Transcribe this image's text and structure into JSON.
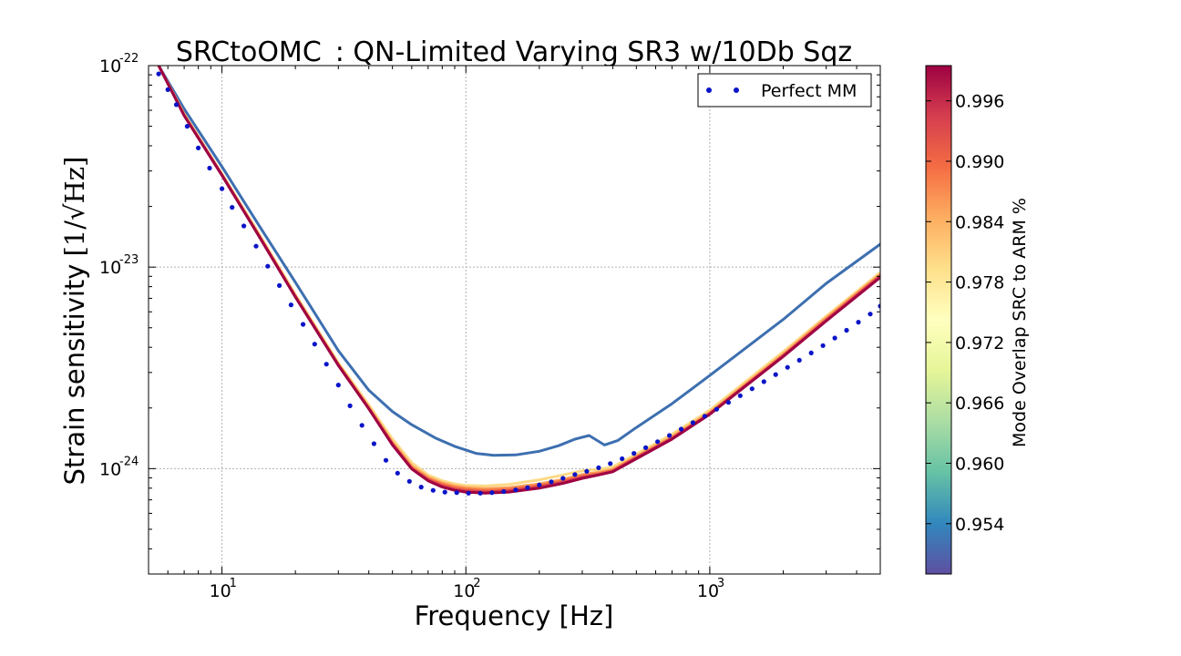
{
  "chart_data": {
    "type": "line",
    "title": "SRCtoOMC_: QN-Limited Varying SR3 w/10Db Sqz",
    "xlabel": "Frequency [Hz]",
    "ylabel_prefix": "Strain sensitivity",
    "ylabel_unit": "[1/√Hz]",
    "x_scale": "log",
    "y_scale": "log",
    "xlim": [
      5,
      5000
    ],
    "ylim": [
      3e-25,
      1e-22
    ],
    "grid": true,
    "x_ticks": [
      {
        "base": "10",
        "exp": "1"
      },
      {
        "base": "10",
        "exp": "2"
      },
      {
        "base": "10",
        "exp": "3"
      }
    ],
    "y_ticks": [
      {
        "base": "10",
        "exp": "-24"
      },
      {
        "base": "10",
        "exp": "-23"
      },
      {
        "base": "10",
        "exp": "-22"
      }
    ],
    "legend": {
      "position": "top-right",
      "entries": [
        "Perfect MM"
      ]
    },
    "colorbar": {
      "label": "Mode Overlap SRC to ARM %",
      "min": 0.949,
      "max": 0.9995,
      "ticks": [
        "0.954",
        "0.960",
        "0.966",
        "0.972",
        "0.978",
        "0.984",
        "0.990",
        "0.996"
      ],
      "colormap": "Spectral"
    },
    "series": [
      {
        "overlap": 0.951,
        "color": "#3d6fb0",
        "x": [
          5.5,
          7,
          10,
          14,
          20,
          30,
          40,
          50,
          60,
          75,
          90,
          110,
          130,
          160,
          200,
          240,
          280,
          320,
          370,
          420,
          500,
          700,
          1000,
          2000,
          3000,
          5000
        ],
        "y": [
          1e-22,
          6.1e-23,
          3.15e-23,
          1.65e-23,
          8.4e-24,
          3.85e-24,
          2.45e-24,
          1.92e-24,
          1.65e-24,
          1.42e-24,
          1.29e-24,
          1.19e-24,
          1.165e-24,
          1.17e-24,
          1.22e-24,
          1.3e-24,
          1.4e-24,
          1.46e-24,
          1.31e-24,
          1.38e-24,
          1.6e-24,
          2.1e-24,
          2.9e-24,
          5.5e-24,
          8.3e-24,
          1.3e-23
        ]
      },
      {
        "overlap": 0.981,
        "color": "#fdd985",
        "x": [
          5.5,
          7,
          10,
          14,
          20,
          30,
          40,
          50,
          60,
          70,
          80,
          90,
          100,
          120,
          150,
          200,
          250,
          300,
          350,
          400,
          500,
          700,
          1000,
          2000,
          3000,
          5000
        ],
        "y": [
          1e-22,
          5.75e-23,
          2.9e-23,
          1.5e-23,
          7.3e-24,
          3.35e-24,
          2.07e-24,
          1.4e-24,
          1.07e-24,
          9.3e-25,
          8.7e-25,
          8.4e-25,
          8.25e-25,
          8.2e-25,
          8.35e-25,
          8.8e-25,
          9.3e-25,
          9.75e-25,
          9.9e-25,
          1.02e-24,
          1.18e-24,
          1.48e-24,
          1.95e-24,
          3.8e-24,
          5.7e-24,
          9.4e-24
        ]
      },
      {
        "overlap": 0.988,
        "color": "#fba05b",
        "x": [
          5.5,
          7,
          10,
          14,
          20,
          30,
          40,
          50,
          60,
          70,
          80,
          90,
          100,
          120,
          150,
          200,
          250,
          300,
          350,
          400,
          500,
          700,
          1000,
          2000,
          3000,
          5000
        ],
        "y": [
          1e-22,
          5.7e-23,
          2.88e-23,
          1.48e-23,
          7.2e-24,
          3.3e-24,
          2.02e-24,
          1.35e-24,
          1.03e-24,
          9.05e-25,
          8.5e-25,
          8.2e-25,
          8.05e-25,
          7.95e-25,
          8.05e-25,
          8.4e-25,
          8.85e-25,
          9.35e-25,
          9.6e-25,
          9.9e-25,
          1.15e-24,
          1.44e-24,
          1.9e-24,
          3.7e-24,
          5.6e-24,
          9.2e-24
        ]
      },
      {
        "overlap": 0.993,
        "color": "#f46d43",
        "x": [
          5.5,
          7,
          10,
          14,
          20,
          30,
          40,
          50,
          60,
          70,
          80,
          90,
          100,
          120,
          150,
          200,
          250,
          300,
          350,
          400,
          500,
          700,
          1000,
          2000,
          3000,
          5000
        ],
        "y": [
          1e-22,
          5.68e-23,
          2.87e-23,
          1.47e-23,
          7.15e-24,
          3.28e-24,
          2e-24,
          1.33e-24,
          1.01e-24,
          8.9e-25,
          8.35e-25,
          8.05e-25,
          7.9e-25,
          7.8e-25,
          7.9e-25,
          8.25e-25,
          8.7e-25,
          9.2e-25,
          9.45e-25,
          9.8e-25,
          1.14e-24,
          1.42e-24,
          1.88e-24,
          3.65e-24,
          5.5e-24,
          9.1e-24
        ]
      },
      {
        "overlap": 0.997,
        "color": "#d53e4f",
        "x": [
          5.5,
          7,
          10,
          14,
          20,
          30,
          40,
          50,
          60,
          70,
          80,
          90,
          100,
          120,
          150,
          200,
          250,
          300,
          350,
          400,
          500,
          700,
          1000,
          2000,
          3000,
          5000
        ],
        "y": [
          1e-22,
          5.66e-23,
          2.86e-23,
          1.465e-23,
          7.12e-24,
          3.26e-24,
          1.99e-24,
          1.32e-24,
          1e-24,
          8.8e-25,
          8.2e-25,
          7.9e-25,
          7.75e-25,
          7.65e-25,
          7.75e-25,
          8.1e-25,
          8.55e-25,
          9.05e-25,
          9.35e-25,
          9.7e-25,
          1.13e-24,
          1.41e-24,
          1.87e-24,
          3.62e-24,
          5.45e-24,
          9e-24
        ]
      },
      {
        "overlap": 0.9995,
        "color": "#9e0142",
        "x": [
          5.5,
          7,
          10,
          14,
          20,
          30,
          40,
          50,
          60,
          70,
          80,
          90,
          100,
          120,
          150,
          200,
          250,
          300,
          350,
          400,
          500,
          700,
          1000,
          2000,
          3000,
          5000
        ],
        "y": [
          1e-22,
          5.64e-23,
          2.85e-23,
          1.46e-23,
          7.1e-24,
          3.25e-24,
          1.98e-24,
          1.31e-24,
          9.95e-25,
          8.7e-25,
          8.1e-25,
          7.8e-25,
          7.65e-25,
          7.55e-25,
          7.65e-25,
          8e-25,
          8.45e-25,
          8.95e-25,
          9.3e-25,
          9.65e-25,
          1.12e-24,
          1.4e-24,
          1.86e-24,
          3.6e-24,
          5.4e-24,
          8.9e-24
        ]
      }
    ],
    "markers": {
      "label": "Perfect MM",
      "color": "#0a14c8",
      "x": [
        5.5,
        6,
        6.5,
        7.2,
        8,
        8.9,
        10,
        11,
        12.3,
        13.8,
        15.4,
        17.2,
        19.2,
        21.5,
        24,
        26.8,
        30,
        33.5,
        37.5,
        42,
        47,
        52.5,
        58.7,
        65.6,
        73.4,
        82,
        91.7,
        102.5,
        114.6,
        128,
        143,
        160,
        179,
        200,
        224,
        250,
        280,
        313,
        350,
        391,
        437,
        489,
        546,
        611,
        683,
        763,
        853,
        954,
        1067,
        1193,
        1333,
        1491,
        1667,
        1863,
        2083,
        2329,
        2604,
        2911,
        3254,
        3638,
        4067,
        4547,
        5000
      ],
      "y": [
        9.1e-23,
        7.6e-23,
        6.4e-23,
        5e-23,
        3.9e-23,
        3.1e-23,
        2.45e-23,
        1.98e-23,
        1.6e-23,
        1.27e-23,
        1.01e-23,
        8.1e-24,
        6.5e-24,
        5.2e-24,
        4.15e-24,
        3.3e-24,
        2.6e-24,
        2.05e-24,
        1.64e-24,
        1.33e-24,
        1.1e-24,
        9.5e-25,
        8.65e-25,
        8.1e-25,
        7.8e-25,
        7.65e-25,
        7.6e-25,
        7.55e-25,
        7.55e-25,
        7.6e-25,
        7.7e-25,
        7.85e-25,
        8.05e-25,
        8.3e-25,
        8.6e-25,
        8.95e-25,
        9.35e-25,
        9.7e-25,
        1.01e-24,
        1.06e-24,
        1.12e-24,
        1.19e-24,
        1.27e-24,
        1.36e-24,
        1.46e-24,
        1.57e-24,
        1.69e-24,
        1.82e-24,
        1.97e-24,
        2.13e-24,
        2.3e-24,
        2.49e-24,
        2.7e-24,
        2.93e-24,
        3.18e-24,
        3.45e-24,
        3.75e-24,
        4.08e-24,
        4.45e-24,
        4.86e-24,
        5.33e-24,
        5.85e-24,
        6.4e-24
      ]
    }
  }
}
